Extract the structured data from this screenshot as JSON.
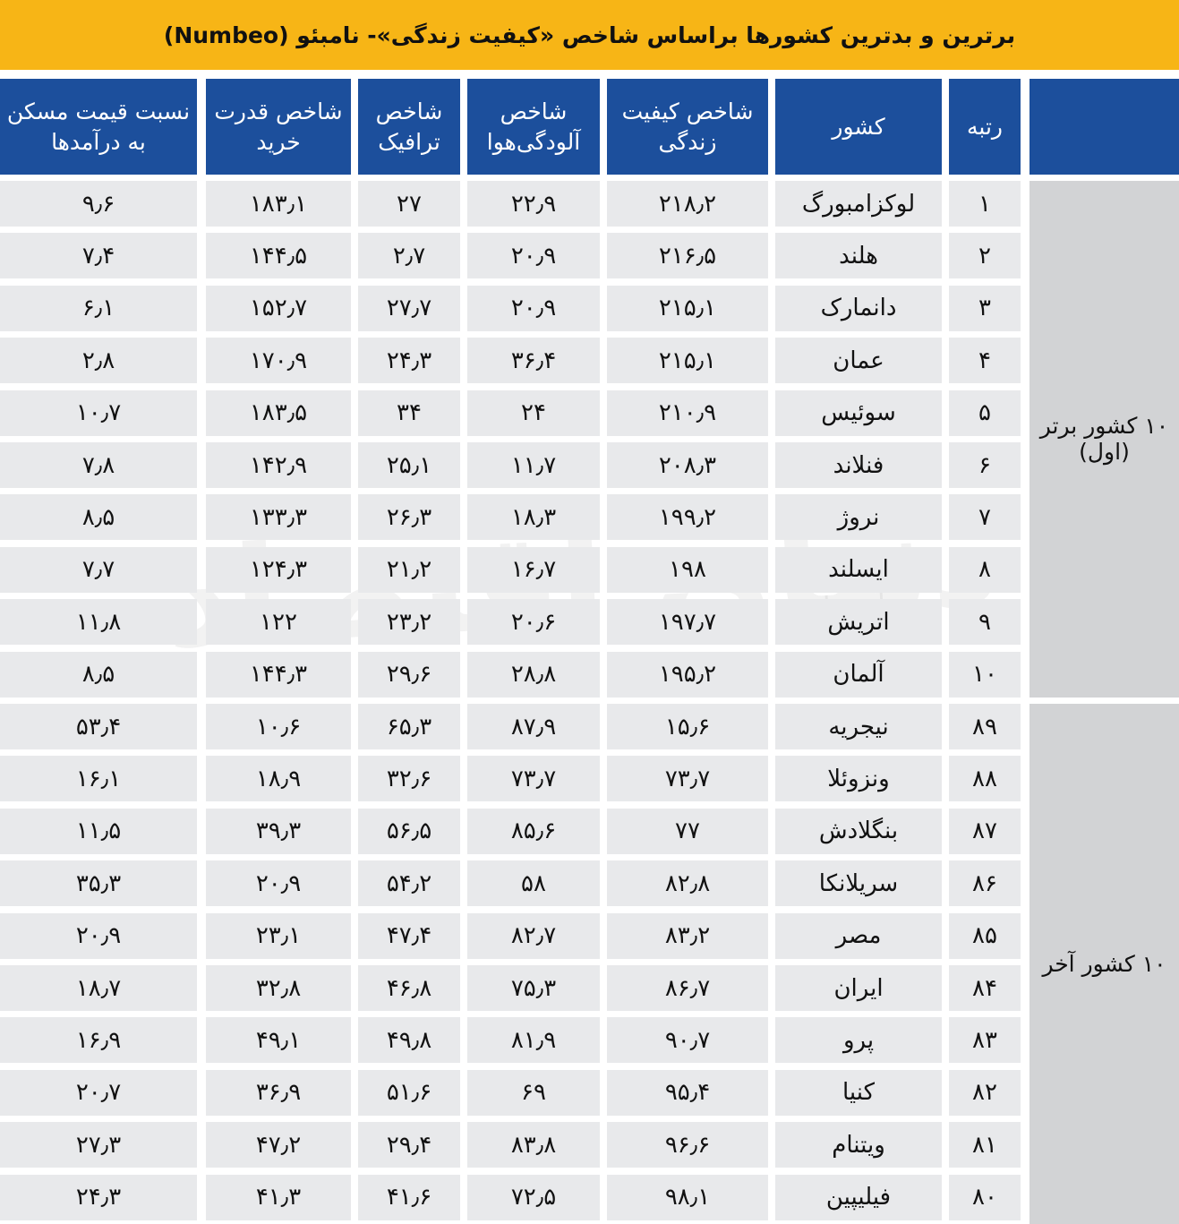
{
  "header": {
    "title": "برترین و بدترین کشورها براساس شاخص «کیفیت زندگی»- نامبئو (Numbeo)"
  },
  "watermark": "دنیای اقتصاد",
  "table": {
    "columns": [
      "رتبه",
      "کشور",
      "شاخص کیفیت زندگی",
      "شاخص آلودگی‌هوا",
      "شاخص ترافیک",
      "شاخص قدرت خرید",
      "نسبت قیمت مسکن به درآمدها"
    ],
    "groups": [
      {
        "label": "۱۰ کشور برتر (اول)",
        "rows": [
          [
            "۱",
            "لوکزامبورگ",
            "۲۱۸٫۲",
            "۲۲٫۹",
            "۲۷",
            "۱۸۳٫۱",
            "۹٫۶"
          ],
          [
            "۲",
            "هلند",
            "۲۱۶٫۵",
            "۲۰٫۹",
            "۲٫۷",
            "۱۴۴٫۵",
            "۷٫۴"
          ],
          [
            "۳",
            "دانمارک",
            "۲۱۵٫۱",
            "۲۰٫۹",
            "۲۷٫۷",
            "۱۵۲٫۷",
            "۶٫۱"
          ],
          [
            "۴",
            "عمان",
            "۲۱۵٫۱",
            "۳۶٫۴",
            "۲۴٫۳",
            "۱۷۰٫۹",
            "۲٫۸"
          ],
          [
            "۵",
            "سوئیس",
            "۲۱۰٫۹",
            "۲۴",
            "۳۴",
            "۱۸۳٫۵",
            "۱۰٫۷"
          ],
          [
            "۶",
            "فنلاند",
            "۲۰۸٫۳",
            "۱۱٫۷",
            "۲۵٫۱",
            "۱۴۲٫۹",
            "۷٫۸"
          ],
          [
            "۷",
            "نروژ",
            "۱۹۹٫۲",
            "۱۸٫۳",
            "۲۶٫۳",
            "۱۳۳٫۳",
            "۸٫۵"
          ],
          [
            "۸",
            "ایسلند",
            "۱۹۸",
            "۱۶٫۷",
            "۲۱٫۲",
            "۱۲۴٫۳",
            "۷٫۷"
          ],
          [
            "۹",
            "اتریش",
            "۱۹۷٫۷",
            "۲۰٫۶",
            "۲۳٫۲",
            "۱۲۲",
            "۱۱٫۸"
          ],
          [
            "۱۰",
            "آلمان",
            "۱۹۵٫۲",
            "۲۸٫۸",
            "۲۹٫۶",
            "۱۴۴٫۳",
            "۸٫۵"
          ]
        ]
      },
      {
        "label": "۱۰ کشور آخر",
        "rows": [
          [
            "۸۹",
            "نیجریه",
            "۱۵٫۶",
            "۸۷٫۹",
            "۶۵٫۳",
            "۱۰٫۶",
            "۵۳٫۴"
          ],
          [
            "۸۸",
            "ونزوئلا",
            "۷۳٫۷",
            "۷۳٫۷",
            "۳۲٫۶",
            "۱۸٫۹",
            "۱۶٫۱"
          ],
          [
            "۸۷",
            "بنگلادش",
            "۷۷",
            "۸۵٫۶",
            "۵۶٫۵",
            "۳۹٫۳",
            "۱۱٫۵"
          ],
          [
            "۸۶",
            "سریلانکا",
            "۸۲٫۸",
            "۵۸",
            "۵۴٫۲",
            "۲۰٫۹",
            "۳۵٫۳"
          ],
          [
            "۸۵",
            "مصر",
            "۸۳٫۲",
            "۸۲٫۷",
            "۴۷٫۴",
            "۲۳٫۱",
            "۲۰٫۹"
          ],
          [
            "۸۴",
            "ایران",
            "۸۶٫۷",
            "۷۵٫۳",
            "۴۶٫۸",
            "۳۲٫۸",
            "۱۸٫۷"
          ],
          [
            "۸۳",
            "پرو",
            "۹۰٫۷",
            "۸۱٫۹",
            "۴۹٫۸",
            "۴۹٫۱",
            "۱۶٫۹"
          ],
          [
            "۸۲",
            "کنیا",
            "۹۵٫۴",
            "۶۹",
            "۵۱٫۶",
            "۳۶٫۹",
            "۲۰٫۷"
          ],
          [
            "۸۱",
            "ویتنام",
            "۹۶٫۶",
            "۸۳٫۸",
            "۲۹٫۴",
            "۴۷٫۲",
            "۲۷٫۳"
          ],
          [
            "۸۰",
            "فیلیپین",
            "۹۸٫۱",
            "۷۲٫۵",
            "۴۱٫۶",
            "۴۱٫۳",
            "۲۴٫۳"
          ]
        ]
      }
    ]
  }
}
